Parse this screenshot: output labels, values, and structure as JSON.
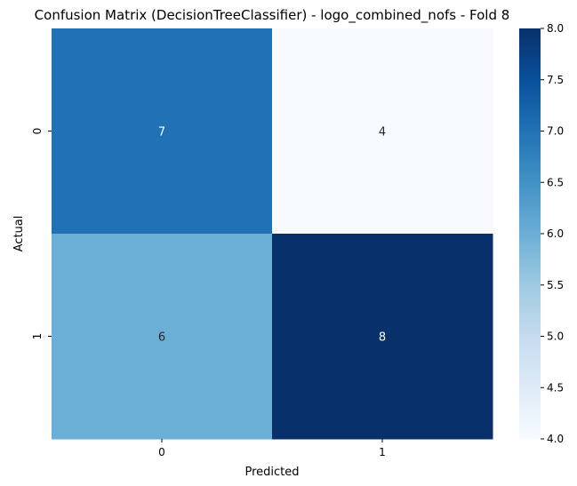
{
  "chart_data": {
    "type": "heatmap",
    "title": "Confusion Matrix (DecisionTreeClassifier) - logo_combined_nofs - Fold 8",
    "xlabel": "Predicted",
    "ylabel": "Actual",
    "x_categories": [
      "0",
      "1"
    ],
    "y_categories": [
      "0",
      "1"
    ],
    "values": [
      [
        7,
        4
      ],
      [
        6,
        8
      ]
    ],
    "colormap": "Blues",
    "color_range": [
      4.0,
      8.0
    ],
    "colorbar_ticks": [
      "4.0",
      "4.5",
      "5.0",
      "5.5",
      "6.0",
      "6.5",
      "7.0",
      "7.5",
      "8.0"
    ]
  }
}
